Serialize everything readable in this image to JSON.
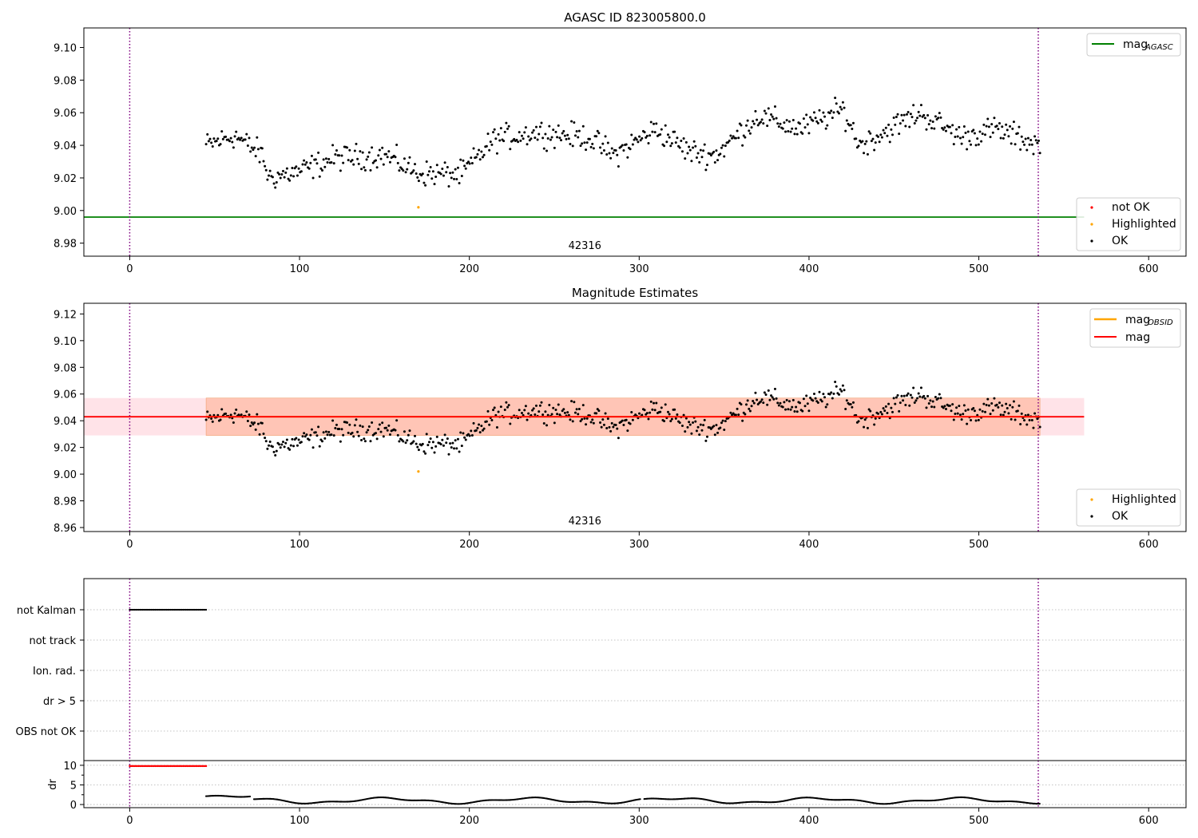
{
  "chart_data": [
    {
      "id": "top",
      "type": "scatter",
      "title": "AGASC ID 823005800.0",
      "xlim": [
        -27,
        622
      ],
      "ylim": [
        8.972,
        9.112
      ],
      "xticks": [
        0,
        100,
        200,
        300,
        400,
        500,
        600
      ],
      "yticks": [
        8.98,
        9.0,
        9.02,
        9.04,
        9.06,
        9.08,
        9.1
      ],
      "ytick_labels": [
        "8.98",
        "9.00",
        "9.02",
        "9.04",
        "9.06",
        "9.08",
        "9.10"
      ],
      "obsid_label": {
        "text": "42316",
        "x": 268
      },
      "vlines": [
        0,
        535
      ],
      "mag_agasc": {
        "y": 8.996,
        "x_end": 562
      },
      "legend_lines": [
        {
          "label": "mag",
          "sub": "AGASC",
          "color": "#008000"
        }
      ],
      "legend_points": [
        {
          "label": "not OK",
          "color": "#ff0000"
        },
        {
          "label": "Highlighted",
          "color": "#ffa500"
        },
        {
          "label": "OK",
          "color": "#000000"
        }
      ],
      "highlighted": [
        {
          "x": 170,
          "y": 9.002
        }
      ],
      "ok_series": {
        "x_start": 45,
        "x_end": 536,
        "n": 640,
        "profile": [
          {
            "x": 45,
            "y": 9.04
          },
          {
            "x": 62,
            "y": 9.046
          },
          {
            "x": 78,
            "y": 9.034
          },
          {
            "x": 82,
            "y": 9.02
          },
          {
            "x": 100,
            "y": 9.024
          },
          {
            "x": 120,
            "y": 9.032
          },
          {
            "x": 150,
            "y": 9.034
          },
          {
            "x": 170,
            "y": 9.023
          },
          {
            "x": 195,
            "y": 9.022
          },
          {
            "x": 215,
            "y": 9.044
          },
          {
            "x": 240,
            "y": 9.048
          },
          {
            "x": 270,
            "y": 9.045
          },
          {
            "x": 285,
            "y": 9.034
          },
          {
            "x": 310,
            "y": 9.05
          },
          {
            "x": 330,
            "y": 9.036
          },
          {
            "x": 345,
            "y": 9.034
          },
          {
            "x": 370,
            "y": 9.058
          },
          {
            "x": 395,
            "y": 9.05
          },
          {
            "x": 420,
            "y": 9.062
          },
          {
            "x": 430,
            "y": 9.04
          },
          {
            "x": 465,
            "y": 9.06
          },
          {
            "x": 490,
            "y": 9.045
          },
          {
            "x": 510,
            "y": 9.05
          },
          {
            "x": 536,
            "y": 9.04
          }
        ],
        "spread": 0.011
      }
    },
    {
      "id": "mid",
      "type": "scatter",
      "title": "Magnitude Estimates",
      "xlim": [
        -27,
        622
      ],
      "ylim": [
        8.957,
        9.128
      ],
      "xticks": [
        0,
        100,
        200,
        300,
        400,
        500,
        600
      ],
      "yticks": [
        8.96,
        8.98,
        9.0,
        9.02,
        9.04,
        9.06,
        9.08,
        9.1,
        9.12
      ],
      "ytick_labels": [
        "8.96",
        "8.98",
        "9.00",
        "9.02",
        "9.04",
        "9.06",
        "9.08",
        "9.10",
        "9.12"
      ],
      "obsid_label": {
        "text": "42316",
        "x": 268
      },
      "vlines": [
        0,
        535
      ],
      "mag": {
        "y": 9.043,
        "x_end": 562
      },
      "mag_band": {
        "low": 9.029,
        "high": 9.057,
        "x_end": 562
      },
      "obsid_band": {
        "low": 9.029,
        "high": 9.057,
        "x_start": 45,
        "x_end": 536
      },
      "legend_lines": [
        {
          "label": "mag",
          "sub": "OBSID",
          "color": "#ffa500"
        },
        {
          "label": "mag",
          "sub": "",
          "color": "#ff0000"
        }
      ],
      "legend_points": [
        {
          "label": "Highlighted",
          "color": "#ffa500"
        },
        {
          "label": "OK",
          "color": "#000000"
        }
      ]
    },
    {
      "id": "flags",
      "type": "scatter",
      "xlim": [
        -27,
        622
      ],
      "categories": [
        "not Kalman",
        "not track",
        "Ion. rad.",
        "dr > 5",
        "OBS not OK"
      ],
      "not_kalman": {
        "x_start": 0,
        "x_end": 45
      },
      "vlines": [
        0,
        535
      ]
    },
    {
      "id": "dr",
      "type": "scatter",
      "ylabel": "dr",
      "xlim": [
        -27,
        622
      ],
      "ylim": [
        -0.8,
        11.2
      ],
      "yticks": [
        0,
        5,
        10
      ],
      "ytick_labels": [
        "0",
        "5",
        "10"
      ],
      "xticks": [
        0,
        100,
        200,
        300,
        400,
        500,
        600
      ],
      "clipped": {
        "x_start": 0,
        "x_end": 45,
        "y": 9.8
      },
      "vlines": [
        0,
        535
      ],
      "dr_series": {
        "x_start": 45,
        "x_end": 536,
        "gaps": [
          [
            71,
            73
          ],
          [
            301,
            303
          ],
          [
            536,
            540
          ]
        ],
        "mean": 1.0
      }
    }
  ],
  "colors": {
    "ok": "#000000",
    "not_ok": "#ff0000",
    "highlighted": "#ffa500",
    "agasc": "#008000",
    "mag": "#ff0000",
    "obsid": "#ffa500",
    "band_mag": "#ffc0cb",
    "band_obsid": "#ffa07a",
    "vline": "#800080"
  }
}
